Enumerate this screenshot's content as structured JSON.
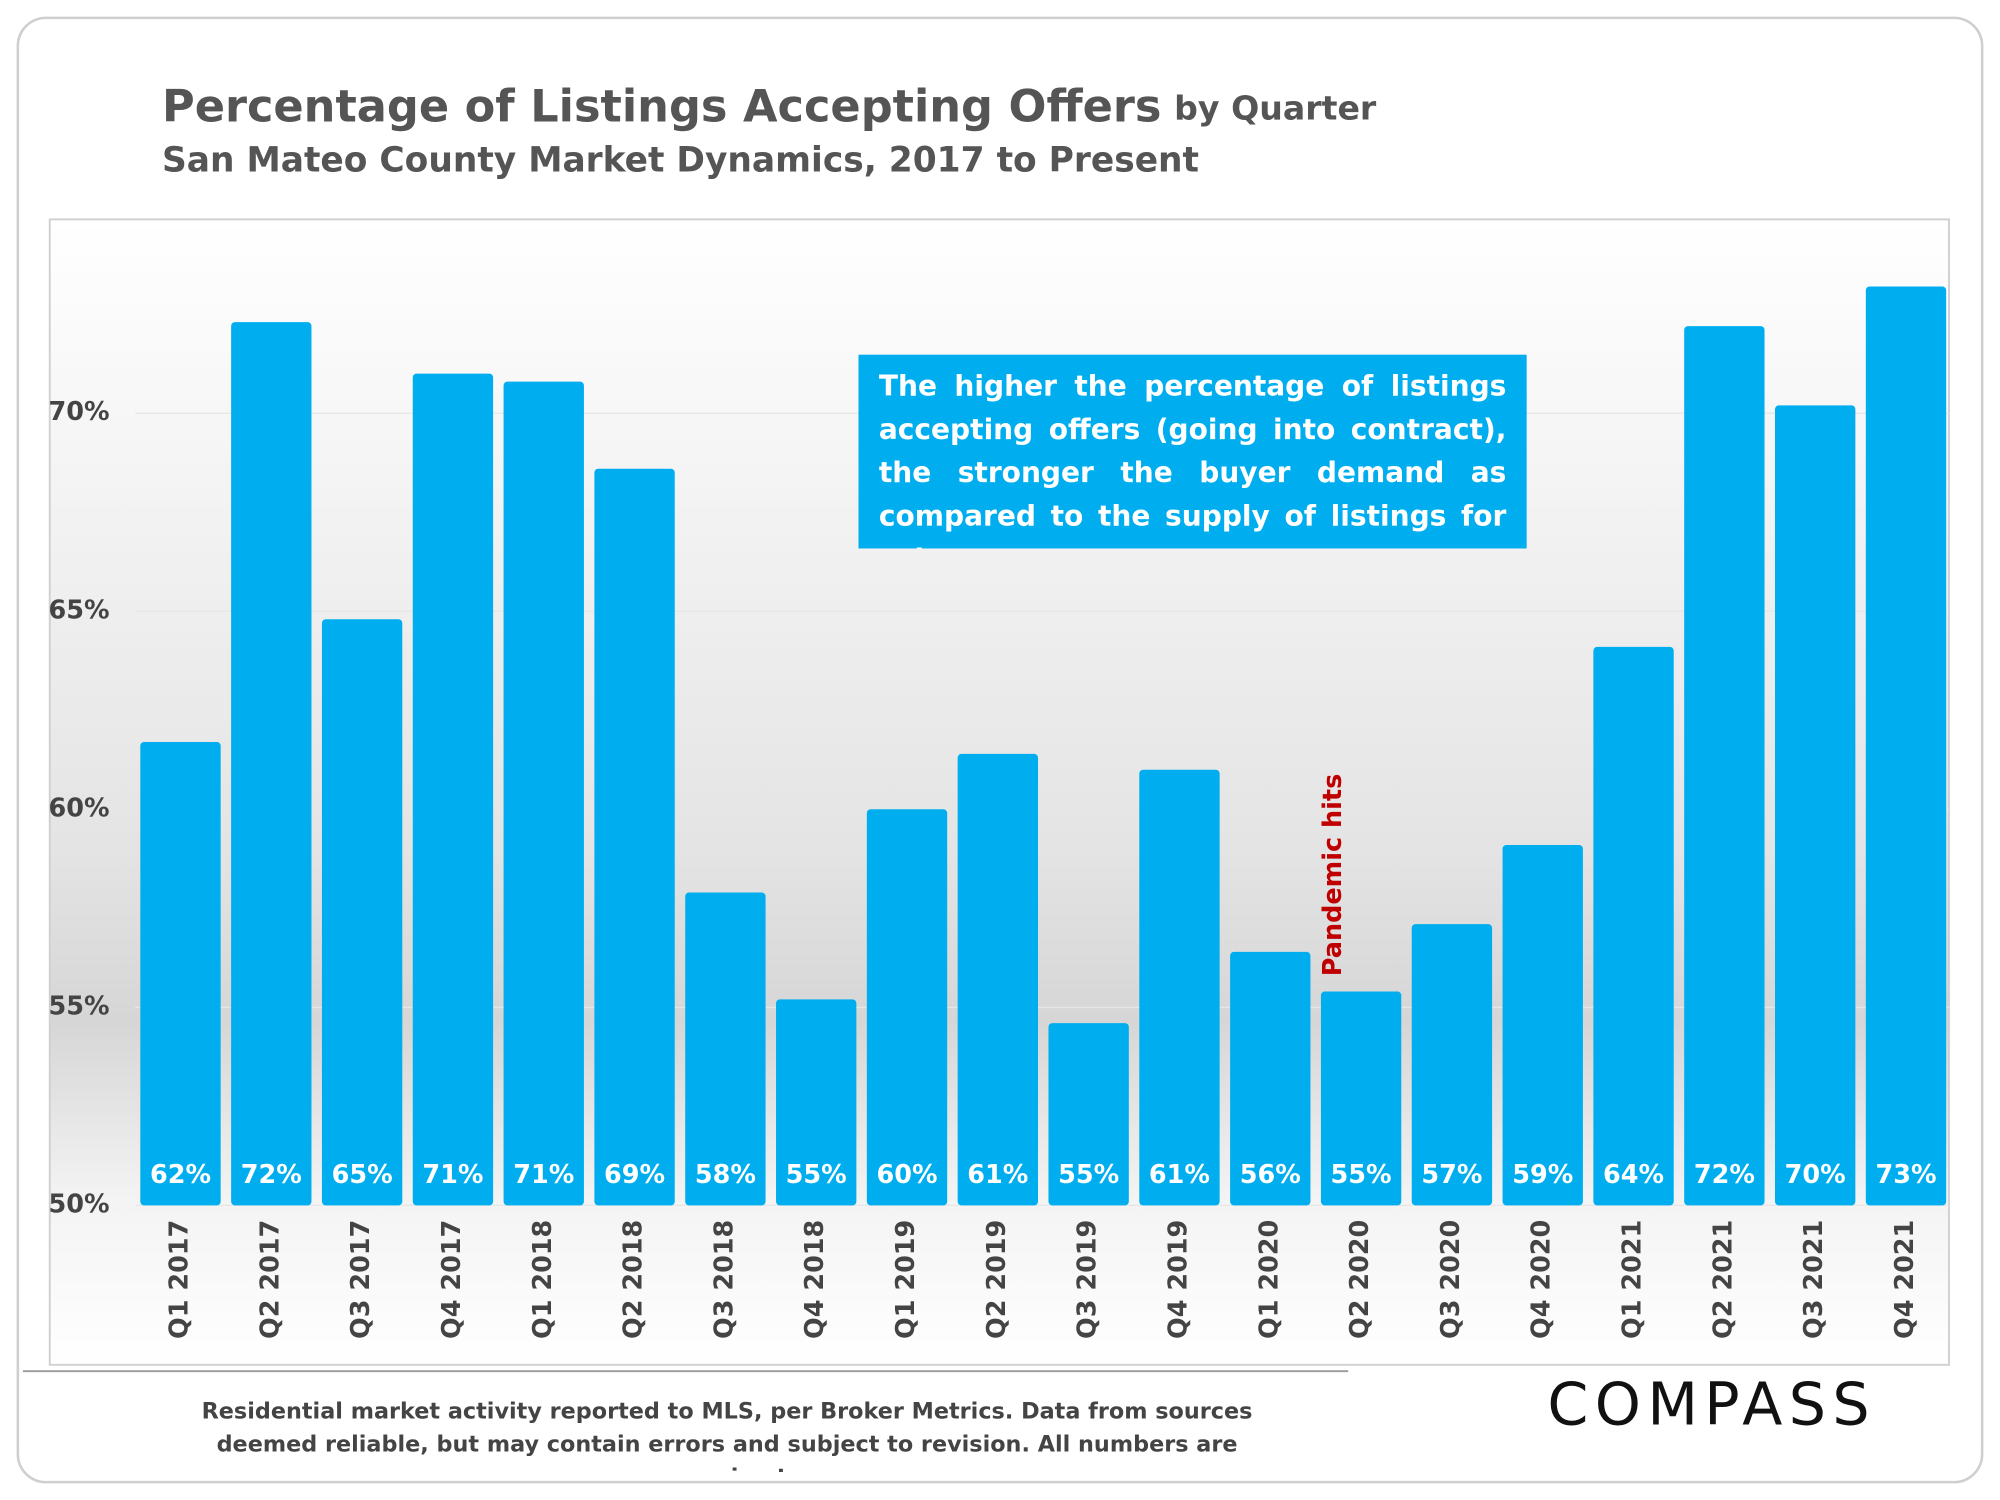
{
  "chart_data": {
    "type": "bar",
    "title": "Percentage of Listings Accepting Offers",
    "title_detail": "by Quarter",
    "subtitle": "San Mateo County Market Dynamics, 2017 to Present",
    "annotation": "The higher the percentage of listings accepting offers (going into contract), the stronger the buyer demand as compared to the supply of listings for sale.",
    "event_label": "Pandemic hits",
    "footnote": "Residential market activity reported to MLS, per Broker Metrics. Data from sources deemed reliable, but may contain errors and subject to revision. All numbers are approximate.",
    "brand": "COMPASS",
    "categories": [
      "Q1 2017",
      "Q2 2017",
      "Q3 2017",
      "Q4 2017",
      "Q1 2018",
      "Q2 2018",
      "Q3 2018",
      "Q4 2018",
      "Q1 2019",
      "Q2 2019",
      "Q3 2019",
      "Q4 2019",
      "Q1 2020",
      "Q2 2020",
      "Q3 2020",
      "Q4 2020",
      "Q1 2021",
      "Q2 2021",
      "Q3 2021",
      "Q4 2021"
    ],
    "values": [
      61.7,
      72.3,
      64.8,
      71.0,
      70.8,
      68.6,
      57.9,
      55.2,
      60.0,
      61.4,
      54.6,
      61.0,
      56.4,
      55.4,
      57.1,
      59.1,
      64.1,
      72.2,
      70.2,
      73.2
    ],
    "value_labels": [
      "62%",
      "72%",
      "65%",
      "71%",
      "71%",
      "69%",
      "58%",
      "55%",
      "60%",
      "61%",
      "55%",
      "61%",
      "56%",
      "55%",
      "57%",
      "59%",
      "64%",
      "72%",
      "70%",
      "73%"
    ],
    "color": "#00aeef",
    "ylim": [
      50,
      75
    ],
    "yticks": [
      {
        "value": 50,
        "label": "50%"
      },
      {
        "value": 55,
        "label": "55%"
      },
      {
        "value": 60,
        "label": "60%"
      },
      {
        "value": 65,
        "label": "65%"
      },
      {
        "value": 70,
        "label": "70%"
      }
    ],
    "grid": true
  }
}
